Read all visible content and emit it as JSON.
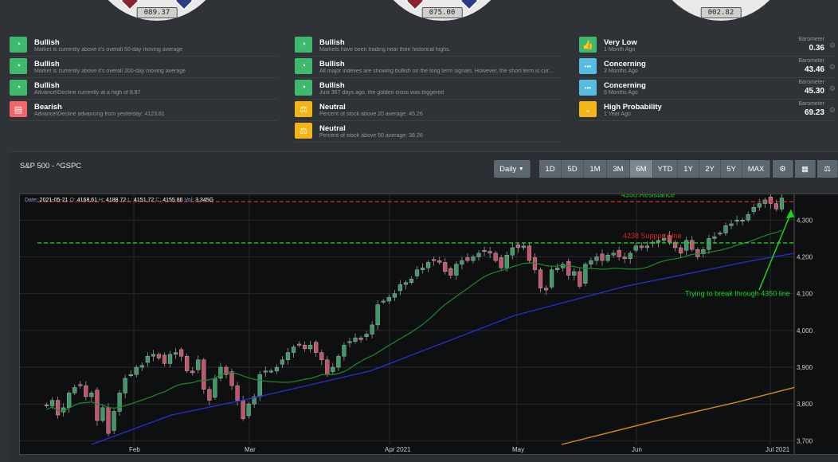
{
  "gauges": [
    {
      "value": "089.37"
    },
    {
      "value": "075.00"
    },
    {
      "value": "002.82"
    }
  ],
  "indicators": {
    "col1": [
      {
        "status": "Bullish",
        "icon": "speedometer-icon",
        "color": "#3fb96b",
        "desc": "Market is currently above it's overall 50-day moving average"
      },
      {
        "status": "Bullish",
        "icon": "speedometer-icon",
        "color": "#3fb96b",
        "desc": "Market is currently above it's overall 200-day moving average"
      },
      {
        "status": "Bullish",
        "icon": "speedometer-icon",
        "color": "#3fb96b",
        "desc": "Advance\\Decline currently at a high of 8.87"
      },
      {
        "status": "Bearish",
        "icon": "chat-icon",
        "color": "#f2666a",
        "desc": "Advance\\Decline advancing from yesterday: 4123.81"
      }
    ],
    "col2": [
      {
        "status": "Bullish",
        "icon": "speedometer-icon",
        "color": "#3fb96b",
        "desc": "Markets have been trading near their historical highs."
      },
      {
        "status": "Bullish",
        "icon": "speedometer-icon",
        "color": "#3fb96b",
        "desc": "All major indexes are showing bullish on the long term signals. However, the short term is cur..."
      },
      {
        "status": "Bullish",
        "icon": "speedometer-icon",
        "color": "#3fb96b",
        "desc": "Just 367 days ago, the golden cross was triggered"
      },
      {
        "status": "Neutral",
        "icon": "scale-icon",
        "color": "#f3b416",
        "desc": "Percent of stock above 20 average: 45.26"
      },
      {
        "status": "Neutral",
        "icon": "scale-icon",
        "color": "#f3b416",
        "desc": "Percent of stock above 50 average: 38.26"
      }
    ],
    "col3": [
      {
        "status": "Very Low",
        "icon": "thumbs-up-icon",
        "color": "#3fb96b",
        "desc": "1 Month Ago",
        "bar_label": "Barometer",
        "bar_value": "0.36"
      },
      {
        "status": "Concerning",
        "icon": "dots-icon",
        "color": "#56bde0",
        "desc": "3 Months Ago",
        "bar_label": "Barometer",
        "bar_value": "43.46"
      },
      {
        "status": "Concerning",
        "icon": "dots-icon",
        "color": "#56bde0",
        "desc": "6 Months Ago",
        "bar_label": "Barometer",
        "bar_value": "45.30"
      },
      {
        "status": "High Probability",
        "icon": "chevron-down-icon",
        "color": "#f3b416",
        "desc": "1 Year Ago",
        "bar_label": "Barometer",
        "bar_value": "69.23"
      }
    ]
  },
  "chart_panel": {
    "title": "S&P 500 - ^GSPC",
    "interval": "Daily",
    "ranges": [
      "1D",
      "5D",
      "1M",
      "3M",
      "6M",
      "YTD",
      "1Y",
      "2Y",
      "5Y",
      "MAX"
    ],
    "active_range": "6M",
    "tools": [
      "gear-icon",
      "calculator-icon",
      "balance-icon"
    ]
  },
  "chart_data": {
    "type": "candlestick",
    "ohlc_label": {
      "date_label": "Date:",
      "date": "2021-05-21",
      "o_label": "O:",
      "o": "4168.61",
      "h_label": "H:",
      "h": "4188.72",
      "l_label": "L:",
      "l": "4151.72",
      "c_label": "C:",
      "c": "4155.86",
      "vol_label": "Vol:",
      "vol": "3.345G"
    },
    "x_labels": [
      "Feb",
      "Mar",
      "Apr 2021",
      "May",
      "Jun",
      "Jul 2021"
    ],
    "y_ticks": [
      "4,300",
      "4,200",
      "4,100",
      "4,000",
      "3,900",
      "3,800",
      "3,700"
    ],
    "ylim": [
      3690,
      4370
    ],
    "annotations": [
      {
        "text": "4350 Resistance",
        "color": "#19d419",
        "value": 4350
      },
      {
        "text": "4238 Support Line",
        "color": "#e02020",
        "value": 4238
      },
      {
        "text": "Trying to break through 4350 line",
        "color": "#19d419"
      }
    ],
    "lines": {
      "resistance": 4350,
      "support": 4238
    },
    "colors": {
      "up": "#3b9a66",
      "down": "#c4546a",
      "ma_short": "#1e8a2a",
      "ma_long": "#2230c8",
      "ma_200": "#d98c10"
    }
  }
}
